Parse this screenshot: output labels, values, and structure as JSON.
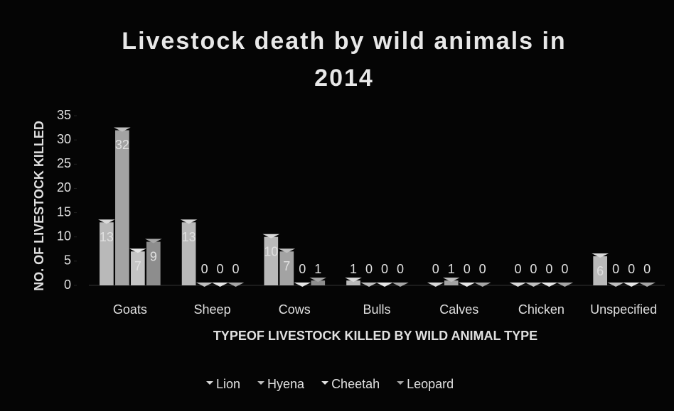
{
  "chart_data": {
    "type": "bar",
    "title": "Livestock death by wild animals in 2014",
    "x_label": "TYPEOF LIVESTOCK KILLED BY WILD ANIMAL TYPE",
    "y_label": "NO. OF LIVESTOCK KILLED",
    "categories": [
      "Goats",
      "Sheep",
      "Cows",
      "Bulls",
      "Calves",
      "Chicken",
      "Unspecified"
    ],
    "series": [
      {
        "name": "Lion",
        "color": "#d9d9d9",
        "values": [
          13,
          13,
          10,
          1,
          0,
          0,
          6
        ]
      },
      {
        "name": "Hyena",
        "color": "#bfbfbf",
        "values": [
          32,
          0,
          7,
          0,
          1,
          0,
          0
        ]
      },
      {
        "name": "Cheetah",
        "color": "#e6e6e6",
        "values": [
          7,
          0,
          0,
          0,
          0,
          0,
          0
        ]
      },
      {
        "name": "Leopard",
        "color": "#a6a6a6",
        "values": [
          9,
          0,
          1,
          0,
          0,
          0,
          0
        ]
      }
    ],
    "ylim": [
      0,
      35
    ],
    "yticks": [
      0,
      5,
      10,
      15,
      20,
      25,
      30,
      35
    ],
    "legend": "bottom"
  }
}
